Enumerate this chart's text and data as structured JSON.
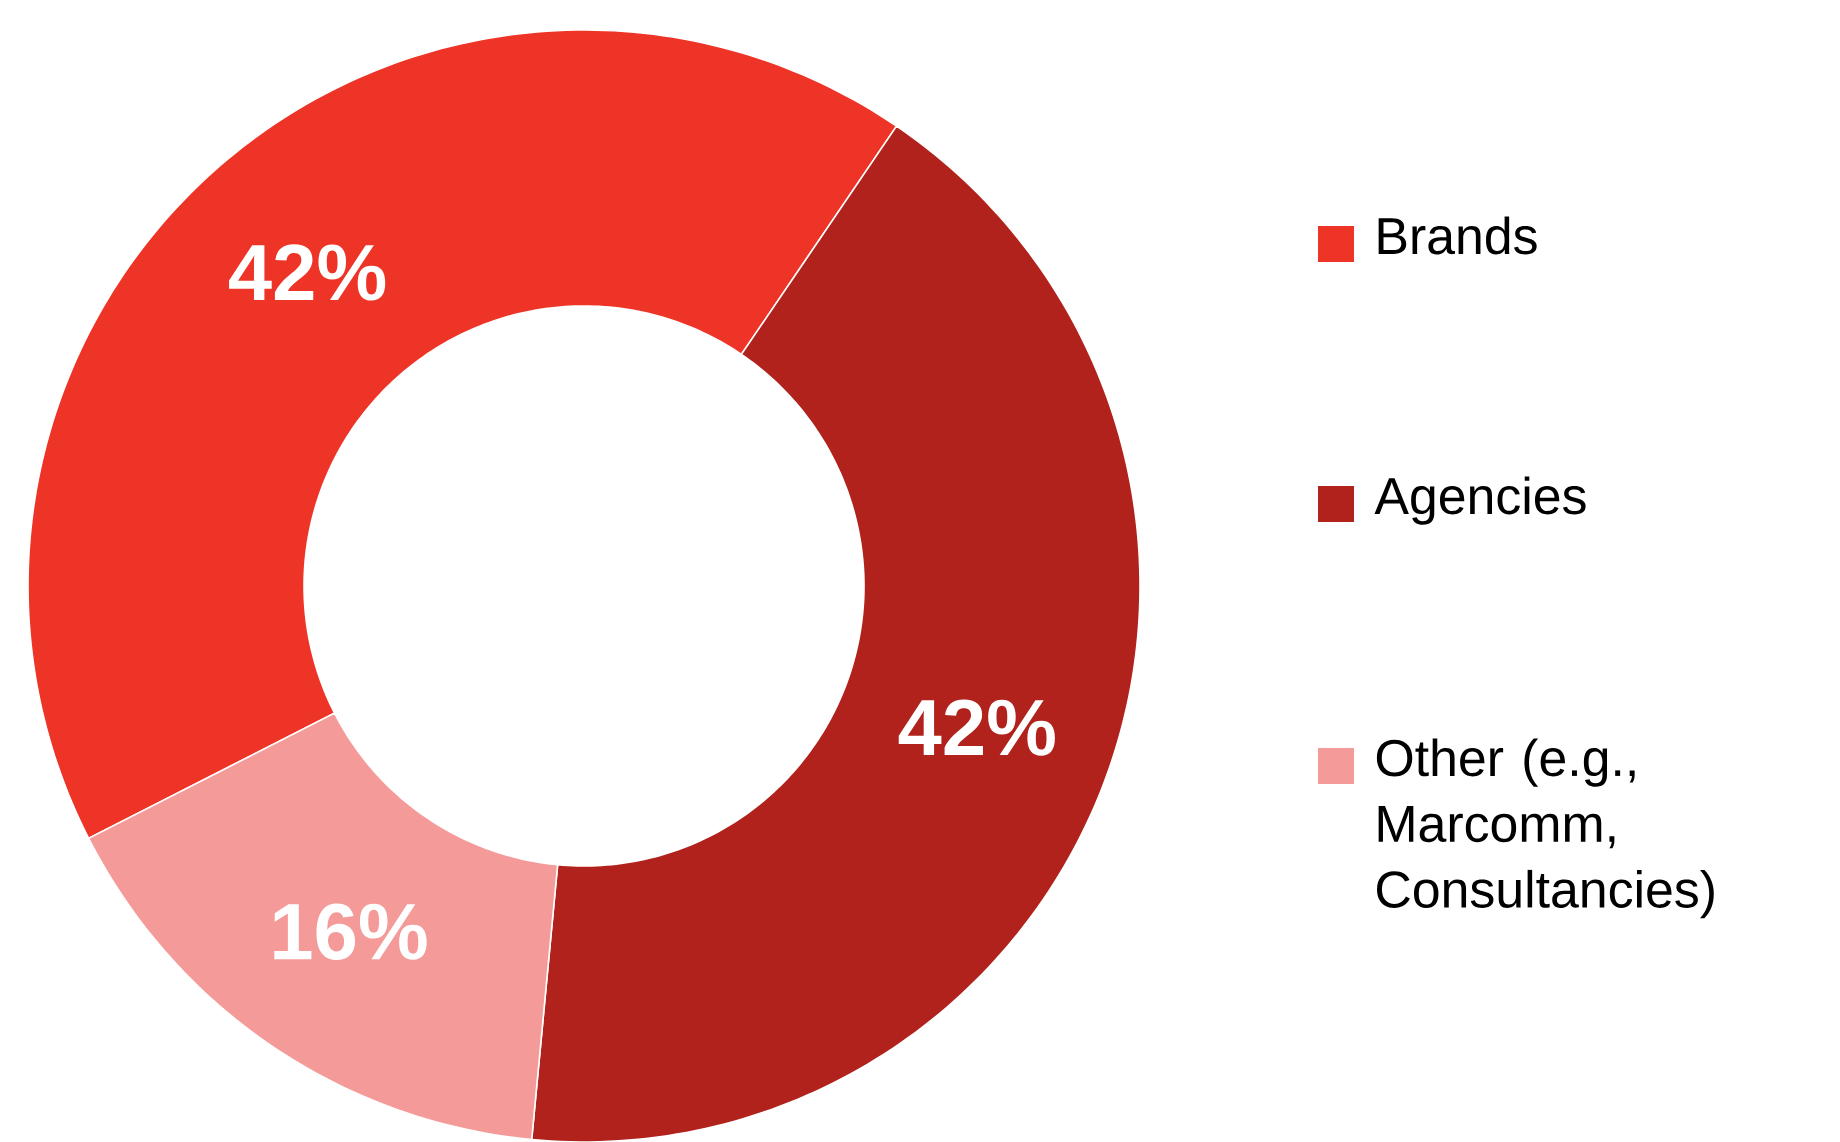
{
  "chart_data": {
    "type": "donut",
    "categories": [
      "Brands",
      "Agencies",
      "Other (e.g., Marcomm, Consultancies)"
    ],
    "values": [
      42,
      42,
      16
    ],
    "colors": [
      "#ee3427",
      "#b0221b",
      "#f49b9a"
    ],
    "value_labels": [
      "42%",
      "42%",
      "16%"
    ],
    "legend": "right"
  }
}
